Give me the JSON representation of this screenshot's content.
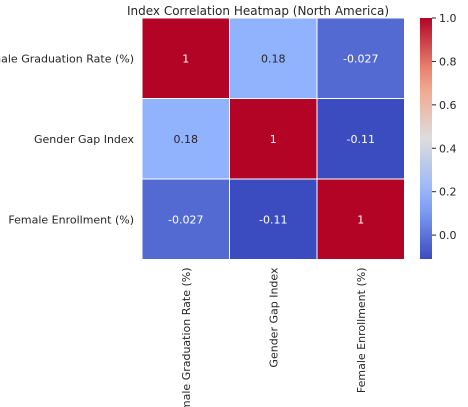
{
  "chart_data": {
    "type": "heatmap",
    "title": "Index Correlation Heatmap (North America)",
    "rows": [
      "Female Graduation Rate (%)",
      "Gender Gap Index",
      "Female Enrollment (%)"
    ],
    "columns": [
      "Female Graduation Rate (%)",
      "Gender Gap Index",
      "Female Enrollment (%)"
    ],
    "values": [
      [
        1,
        0.18,
        -0.027
      ],
      [
        0.18,
        1,
        -0.11
      ],
      [
        -0.027,
        -0.11,
        1
      ]
    ],
    "value_labels": [
      [
        "1",
        "0.18",
        "-0.027"
      ],
      [
        "0.18",
        "1",
        "-0.11"
      ],
      [
        "-0.027",
        "-0.11",
        "1"
      ]
    ],
    "colormap": "coolwarm",
    "colorbar": {
      "range": [
        -0.11,
        1.0
      ],
      "ticks": [
        0.0,
        0.2,
        0.4,
        0.6,
        0.8,
        1.0
      ],
      "tick_labels": [
        "0.0",
        "0.2",
        "0.4",
        "0.6",
        "0.8",
        "1.0"
      ]
    },
    "cell_border_color": "#ffffff"
  }
}
